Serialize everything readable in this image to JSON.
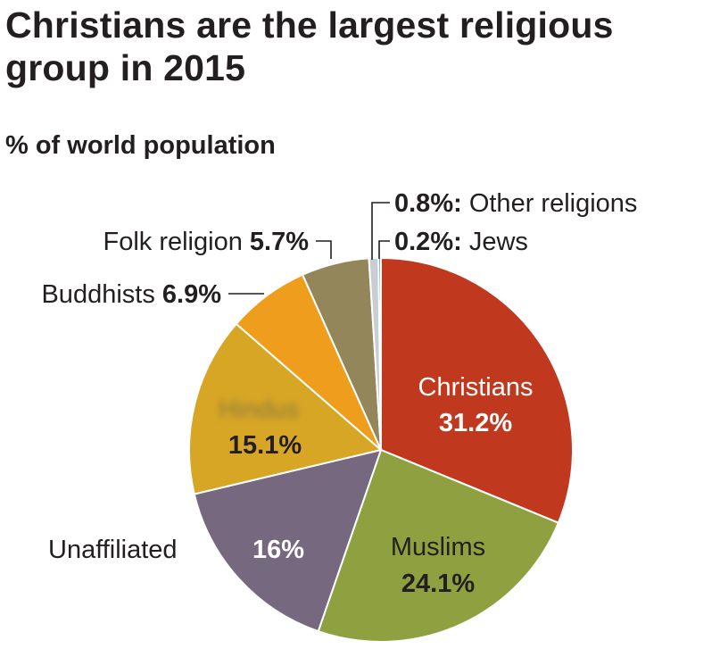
{
  "header": {
    "title": "Christians are the largest religious group in 2015",
    "subtitle": "% of world population"
  },
  "colors": {
    "Christians": "#c0391e",
    "Muslims": "#8fa040",
    "Unaffiliated": "#76687f",
    "Hindus": "#d7a625",
    "Buddhists": "#ee9d1c",
    "Folk religion": "#94865b",
    "Other religions": "#c9ced4",
    "Jews": "#2a86c4"
  },
  "chart_data": {
    "type": "pie",
    "title": "Christians are the largest religious group in 2015",
    "subtitle": "% of world population",
    "slices": [
      {
        "name": "Christians",
        "value": 31.2,
        "label": "Christians",
        "value_label": "31.2%"
      },
      {
        "name": "Muslims",
        "value": 24.1,
        "label": "Muslims",
        "value_label": "24.1%"
      },
      {
        "name": "Unaffiliated",
        "value": 16.0,
        "label": "Unaffiliated",
        "value_label": "16%"
      },
      {
        "name": "Hindus",
        "value": 15.1,
        "label": "Hindus",
        "value_label": "15.1%"
      },
      {
        "name": "Buddhists",
        "value": 6.9,
        "label": "Buddhists",
        "value_label": "6.9%"
      },
      {
        "name": "Folk religion",
        "value": 5.7,
        "label": "Folk religion",
        "value_label": "5.7%"
      },
      {
        "name": "Other religions",
        "value": 0.8,
        "label": "Other religions",
        "value_label": "0.8%:"
      },
      {
        "name": "Jews",
        "value": 0.2,
        "label": "Jews",
        "value_label": "0.2%:"
      }
    ]
  }
}
